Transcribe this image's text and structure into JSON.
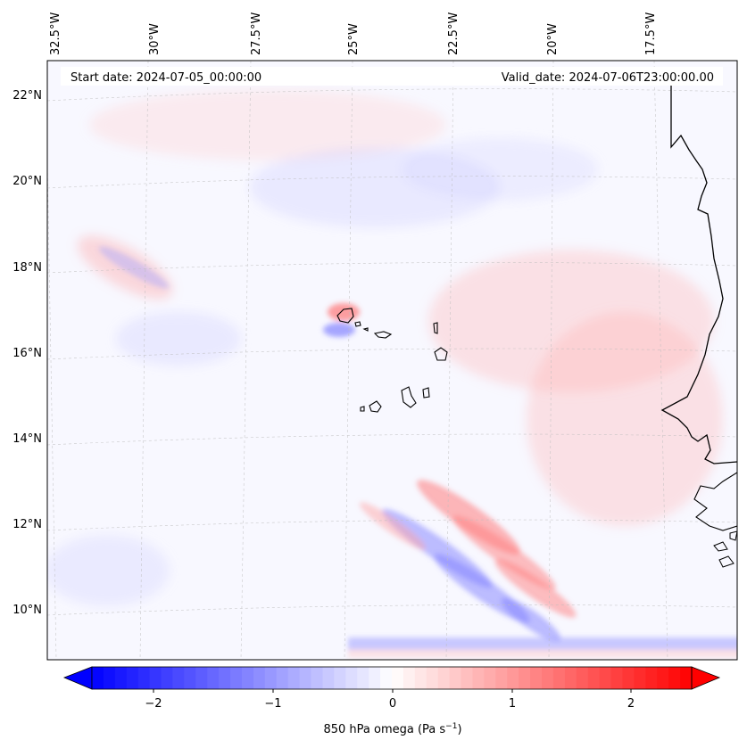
{
  "map": {
    "start_date_label": "Start date: 2024-07-05_00:00:00",
    "valid_date_label": "Valid_date: 2024-07-06T23:00:00.00",
    "longitude_labels": [
      "32.5°W",
      "30°W",
      "27.5°W",
      "25°W",
      "22.5°W",
      "20°W",
      "17.5°W"
    ],
    "latitude_labels": [
      "22°N",
      "20°N",
      "18°N",
      "16°N",
      "14°N",
      "12°N",
      "10°N"
    ],
    "field_colors": {
      "background": "#f8f8ff",
      "positive": "#ff0000",
      "negative": "#0000ff",
      "coastline": "#000000"
    }
  },
  "colorbar": {
    "label_main": "850 hPa omega (Pa s",
    "label_exponent": "−1",
    "label_close": ")",
    "ticks": [
      "−2",
      "−1",
      "0",
      "1",
      "2"
    ],
    "range": [
      -2.6,
      2.6
    ],
    "colormap": "bwr"
  }
}
